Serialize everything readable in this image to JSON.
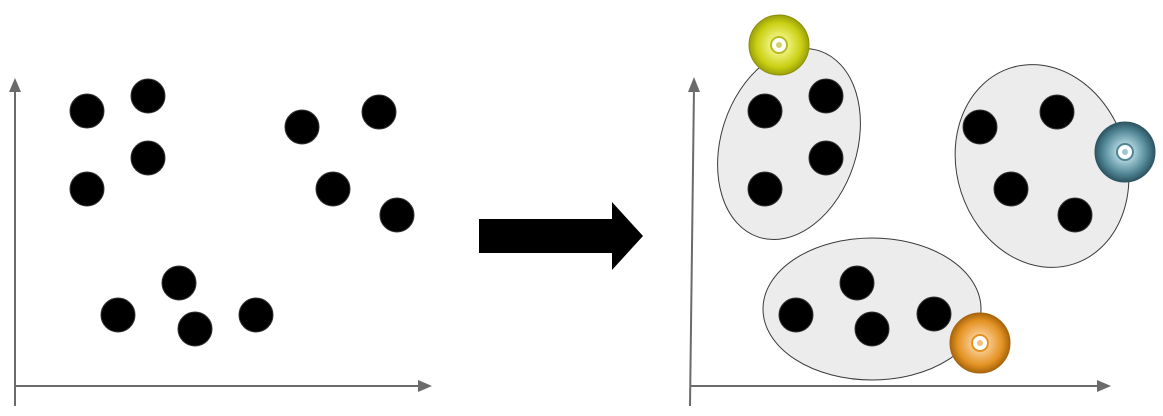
{
  "diagram": {
    "description_free": true,
    "left_panel": {
      "points": 12,
      "clusters": 0
    },
    "transform_arrow": "right-arrow-icon",
    "right_panel": {
      "points": 12,
      "clusters": [
        {
          "marker_icon": "disc-icon",
          "marker_color": "#d8dd1e",
          "points": 4
        },
        {
          "marker_icon": "disc-icon",
          "marker_color": "#4f8493",
          "points": 4
        },
        {
          "marker_icon": "disc-icon",
          "marker_color": "#e39222",
          "points": 4
        }
      ]
    },
    "colors": {
      "dot": "#000000",
      "cluster_fill": "#ececec",
      "axis": "#6b6b6b",
      "arrow": "#000000"
    }
  }
}
